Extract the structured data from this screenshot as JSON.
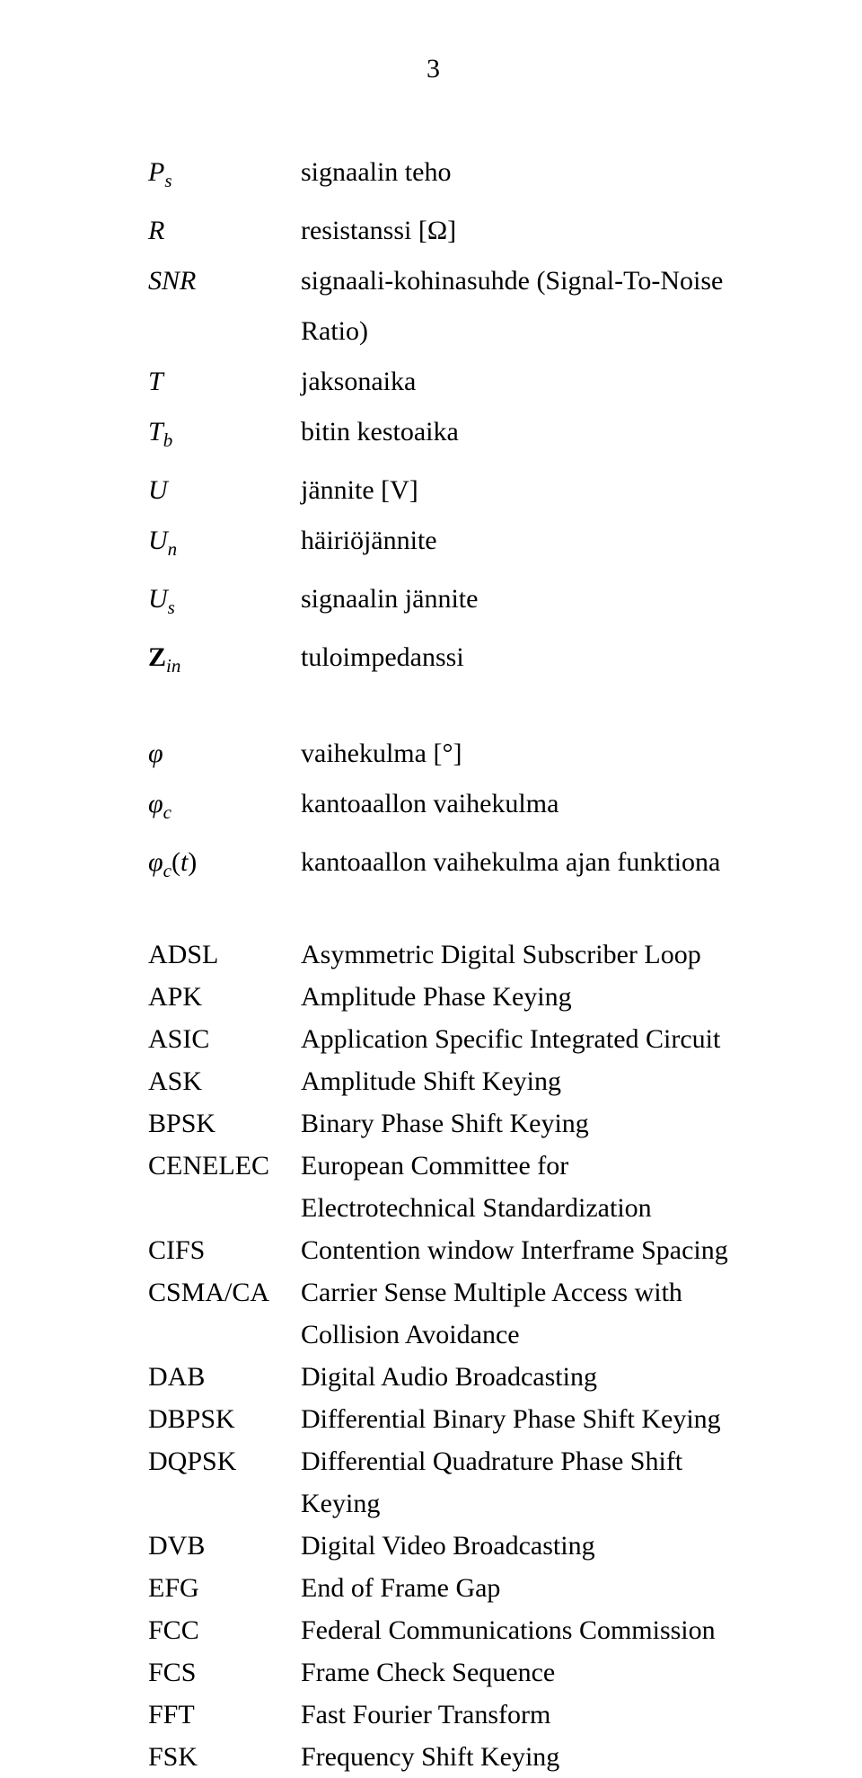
{
  "page_number": "3",
  "symbols_block1": [
    {
      "sym_html": "P<span class='sub'>s</span>",
      "desc": "signaalin teho"
    },
    {
      "sym_html": "R",
      "desc": "resistanssi [Ω]"
    },
    {
      "sym_html": "SNR",
      "desc": "signaali-kohinasuhde (Signal-To-Noise Ratio)"
    },
    {
      "sym_html": "T",
      "desc": "jaksonaika"
    },
    {
      "sym_html": "T<span class='sub'>b</span>",
      "desc": "bitin kestoaika"
    },
    {
      "sym_html": "U",
      "desc": "jännite [V]"
    },
    {
      "sym_html": "U<span class='sub'>n</span>",
      "desc": "häiriöjännite"
    },
    {
      "sym_html": "U<span class='sub'>s</span>",
      "desc": "signaalin jännite"
    },
    {
      "sym_html": "<span class='upright'><b>Z</b></span><span class='sub'>in</span>",
      "desc": "tuloimpedanssi"
    }
  ],
  "symbols_block2": [
    {
      "sym_html": "φ",
      "desc": "vaihekulma [°]"
    },
    {
      "sym_html": "φ<span class='sub'>c</span>",
      "desc": "kantoaallon vaihekulma"
    },
    {
      "sym_html": "φ<span class='sub'>c</span><span class='targ'>(</span>t<span class='targ'>)</span>",
      "desc": "kantoaallon vaihekulma ajan funktiona"
    }
  ],
  "abbreviations": [
    {
      "abbr": "ADSL",
      "desc": "Asymmetric Digital Subscriber Loop"
    },
    {
      "abbr": "APK",
      "desc": "Amplitude Phase Keying"
    },
    {
      "abbr": "ASIC",
      "desc": "Application Specific Integrated Circuit"
    },
    {
      "abbr": "ASK",
      "desc": "Amplitude Shift Keying"
    },
    {
      "abbr": "BPSK",
      "desc": "Binary Phase Shift Keying"
    },
    {
      "abbr": "CENELEC",
      "desc": "European Committee for Electrotechnical Standardization"
    },
    {
      "abbr": "CIFS",
      "desc": "Contention window Interframe Spacing"
    },
    {
      "abbr": "CSMA/CA",
      "desc": "Carrier Sense Multiple Access with Collision Avoidance"
    },
    {
      "abbr": "DAB",
      "desc": "Digital Audio Broadcasting"
    },
    {
      "abbr": "DBPSK",
      "desc": "Differential Binary Phase Shift Keying"
    },
    {
      "abbr": "DQPSK",
      "desc": "Differential Quadrature Phase Shift Keying"
    },
    {
      "abbr": "DVB",
      "desc": "Digital Video Broadcasting"
    },
    {
      "abbr": "EFG",
      "desc": "End of Frame Gap"
    },
    {
      "abbr": "FCC",
      "desc": "Federal Communications Commission"
    },
    {
      "abbr": "FCS",
      "desc": "Frame Check Sequence"
    },
    {
      "abbr": "FFT",
      "desc": "Fast Fourier Transform"
    },
    {
      "abbr": "FSK",
      "desc": "Frequency Shift Keying"
    }
  ]
}
